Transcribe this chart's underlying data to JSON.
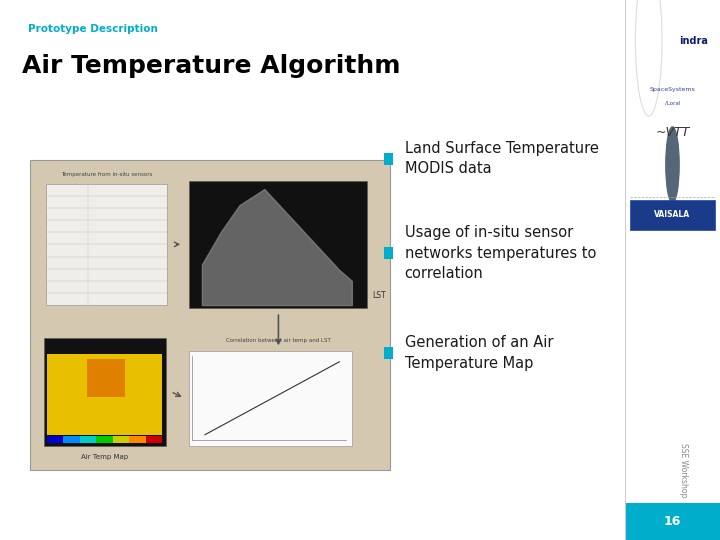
{
  "title": "Air Temperature Algorithm",
  "subtitle": "Prototype Description",
  "subtitle_color": "#00AECC",
  "title_color": "#000000",
  "background_color": "#FFFFFF",
  "bullet_color": "#00AECC",
  "bullet_items": [
    "Land Surface Temperature\nMODIS data",
    "Usage of in-situ sensor\nnetworks temperatures to\ncorrelation",
    "Generation of an Air\nTemperature Map"
  ],
  "bullet_fontsize": 10.5,
  "diagram_bg": "#D4C9B0",
  "footer_bar_color": "#00AECC",
  "footer_number": "16",
  "footer_text_color": "#FFFFFF",
  "side_text": "SSE Workshop",
  "side_text_color": "#888888",
  "right_panel_bg": "#F8F8F8",
  "right_panel_sep_color": "#CCCCCC"
}
